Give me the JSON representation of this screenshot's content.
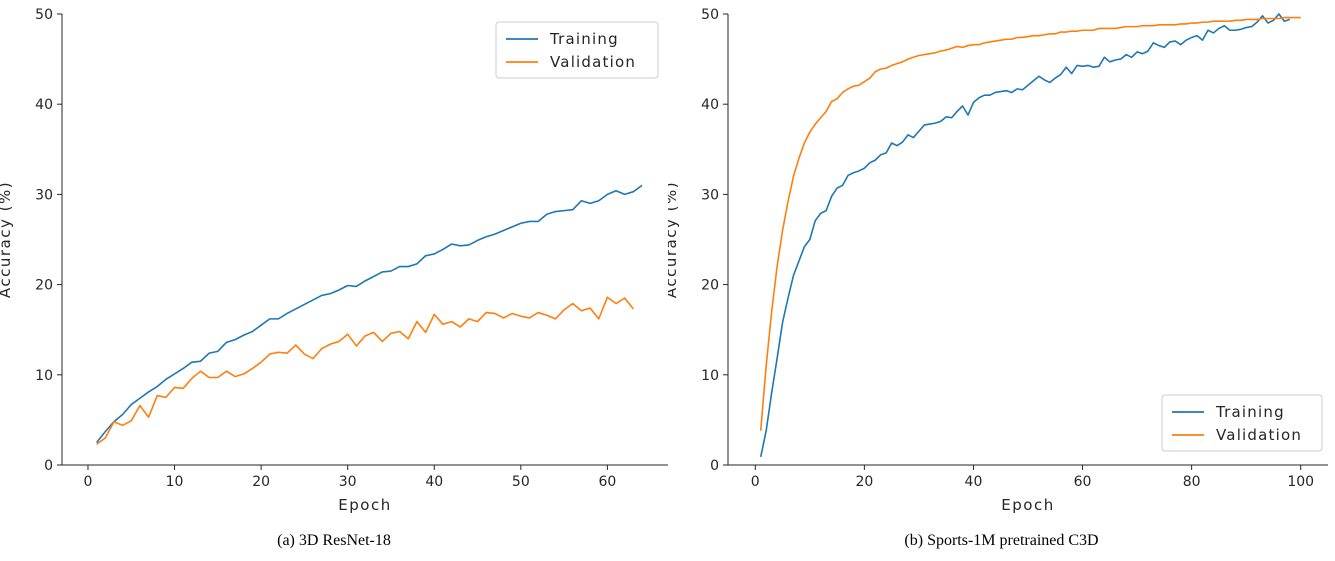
{
  "chart_data": [
    {
      "type": "line",
      "caption": "(a) 3D ResNet-18",
      "xlabel": "Epoch",
      "ylabel": "Accuracy (%)",
      "xlim": [
        -3,
        67
      ],
      "ylim": [
        0,
        50
      ],
      "xticks": [
        0,
        10,
        20,
        30,
        40,
        50,
        60
      ],
      "yticks": [
        0,
        10,
        20,
        30,
        40,
        50
      ],
      "grid": false,
      "legend_position": "top-right",
      "series": [
        {
          "name": "Training",
          "color": "#1f77b4",
          "x": [
            1,
            2,
            3,
            4,
            5,
            6,
            7,
            8,
            9,
            10,
            11,
            12,
            13,
            14,
            15,
            16,
            17,
            18,
            19,
            20,
            21,
            22,
            23,
            24,
            25,
            26,
            27,
            28,
            29,
            30,
            31,
            32,
            33,
            34,
            35,
            36,
            37,
            38,
            39,
            40,
            41,
            42,
            43,
            44,
            45,
            46,
            47,
            48,
            49,
            50,
            51,
            52,
            53,
            54,
            55,
            56,
            57,
            58,
            59,
            60,
            61,
            62,
            63,
            64
          ],
          "values": [
            2.5,
            3.7,
            4.8,
            5.6,
            6.7,
            7.4,
            8.1,
            8.7,
            9.5,
            10.1,
            10.7,
            11.4,
            11.5,
            12.4,
            12.6,
            13.6,
            13.9,
            14.4,
            14.8,
            15.5,
            16.2,
            16.2,
            16.8,
            17.3,
            17.8,
            18.3,
            18.8,
            19.0,
            19.4,
            19.9,
            19.8,
            20.4,
            20.9,
            21.4,
            21.5,
            22.0,
            22.0,
            22.3,
            23.2,
            23.4,
            23.9,
            24.5,
            24.3,
            24.4,
            24.9,
            25.3,
            25.6,
            26.0,
            26.4,
            26.8,
            27.0,
            27.0,
            27.8,
            28.1,
            28.2,
            28.3,
            29.3,
            29.0,
            29.3,
            30.0,
            30.4,
            30.0,
            30.3,
            31.0
          ]
        },
        {
          "name": "Validation",
          "color": "#ff7f0e",
          "x": [
            1,
            2,
            3,
            4,
            5,
            6,
            7,
            8,
            9,
            10,
            11,
            12,
            13,
            14,
            15,
            16,
            17,
            18,
            19,
            20,
            21,
            22,
            23,
            24,
            25,
            26,
            27,
            28,
            29,
            30,
            31,
            32,
            33,
            34,
            35,
            36,
            37,
            38,
            39,
            40,
            41,
            42,
            43,
            44,
            45,
            46,
            47,
            48,
            49,
            50,
            51,
            52,
            53,
            54,
            55,
            56,
            57,
            58,
            59,
            60,
            61,
            62,
            63,
            64
          ],
          "values": [
            2.3,
            3.0,
            4.8,
            4.4,
            4.9,
            6.6,
            5.3,
            7.7,
            7.5,
            8.6,
            8.5,
            9.6,
            10.4,
            9.7,
            9.7,
            10.4,
            9.8,
            10.1,
            10.7,
            11.4,
            12.3,
            12.5,
            12.4,
            13.3,
            12.3,
            11.8,
            12.9,
            13.4,
            13.7,
            14.5,
            13.2,
            14.3,
            14.7,
            13.7,
            14.6,
            14.8,
            14.0,
            15.9,
            14.7,
            16.7,
            15.6,
            15.9,
            15.3,
            16.2,
            15.9,
            16.9,
            16.8,
            16.3,
            16.8,
            16.5,
            16.3,
            16.9,
            16.6,
            16.2,
            17.2,
            17.9,
            17.1,
            17.4,
            16.2,
            18.6,
            17.9,
            18.5,
            17.3,
            null
          ]
        }
      ]
    },
    {
      "type": "line",
      "caption": "(b) Sports-1M pretrained C3D",
      "xlabel": "Epoch",
      "ylabel": "Accuracy (%)",
      "xlim": [
        -5,
        105
      ],
      "ylim": [
        0,
        50
      ],
      "xticks": [
        0,
        20,
        40,
        60,
        80,
        100
      ],
      "yticks": [
        0,
        10,
        20,
        30,
        40,
        50
      ],
      "grid": false,
      "legend_position": "bottom-right",
      "series": [
        {
          "name": "Training",
          "color": "#1f77b4",
          "x": [
            1,
            2,
            3,
            4,
            5,
            6,
            7,
            8,
            9,
            10,
            11,
            12,
            13,
            14,
            15,
            16,
            17,
            18,
            19,
            20,
            21,
            22,
            23,
            24,
            25,
            26,
            27,
            28,
            29,
            30,
            31,
            32,
            33,
            34,
            35,
            36,
            37,
            38,
            39,
            40,
            41,
            42,
            43,
            44,
            45,
            46,
            47,
            48,
            49,
            50,
            51,
            52,
            53,
            54,
            55,
            56,
            57,
            58,
            59,
            60,
            61,
            62,
            63,
            64,
            65,
            66,
            67,
            68,
            69,
            70,
            71,
            72,
            73,
            74,
            75,
            76,
            77,
            78,
            79,
            80,
            81,
            82,
            83,
            84,
            85,
            86,
            87,
            88,
            89,
            90,
            91,
            92,
            93,
            94,
            95,
            96,
            97,
            98,
            99,
            100
          ],
          "values": [
            0.9,
            3.8,
            8.0,
            11.8,
            15.8,
            18.5,
            21.0,
            22.6,
            24.2,
            25.0,
            27.1,
            27.9,
            28.2,
            29.8,
            30.7,
            31.0,
            32.1,
            32.4,
            32.6,
            32.9,
            33.5,
            33.8,
            34.4,
            34.6,
            35.7,
            35.4,
            35.8,
            36.6,
            36.3,
            37.0,
            37.7,
            37.8,
            37.9,
            38.1,
            38.6,
            38.5,
            39.2,
            39.8,
            38.8,
            40.2,
            40.7,
            41.0,
            41.0,
            41.3,
            41.4,
            41.5,
            41.3,
            41.7,
            41.6,
            42.1,
            42.6,
            43.1,
            42.7,
            42.4,
            42.9,
            43.3,
            44.1,
            43.4,
            44.3,
            44.2,
            44.3,
            44.1,
            44.2,
            45.2,
            44.7,
            44.9,
            45.0,
            45.5,
            45.2,
            45.8,
            45.6,
            45.9,
            46.8,
            46.5,
            46.3,
            46.9,
            47.0,
            46.6,
            47.1,
            47.4,
            47.6,
            47.1,
            48.2,
            47.9,
            48.4,
            48.7,
            48.2,
            48.2,
            48.3,
            48.5,
            48.6,
            49.1,
            49.8,
            49.0,
            49.3,
            50.0,
            49.2,
            49.4,
            null,
            null
          ]
        },
        {
          "name": "Validation",
          "color": "#ff7f0e",
          "x": [
            1,
            2,
            3,
            4,
            5,
            6,
            7,
            8,
            9,
            10,
            11,
            12,
            13,
            14,
            15,
            16,
            17,
            18,
            19,
            20,
            21,
            22,
            23,
            24,
            25,
            26,
            27,
            28,
            29,
            30,
            31,
            32,
            33,
            34,
            35,
            36,
            37,
            38,
            39,
            40,
            41,
            42,
            43,
            44,
            45,
            46,
            47,
            48,
            49,
            50,
            51,
            52,
            53,
            54,
            55,
            56,
            57,
            58,
            59,
            60,
            61,
            62,
            63,
            64,
            65,
            66,
            67,
            68,
            69,
            70,
            71,
            72,
            73,
            74,
            75,
            76,
            77,
            78,
            79,
            80,
            81,
            82,
            83,
            84,
            85,
            86,
            87,
            88,
            89,
            90,
            91,
            92,
            93,
            94,
            95,
            96,
            97,
            98,
            99,
            100
          ],
          "values": [
            3.8,
            11.0,
            17.0,
            22.0,
            26.0,
            29.2,
            32.0,
            34.0,
            35.7,
            36.9,
            37.8,
            38.5,
            39.2,
            40.3,
            40.6,
            41.3,
            41.7,
            42.0,
            42.1,
            42.5,
            42.9,
            43.6,
            43.9,
            44.0,
            44.3,
            44.5,
            44.7,
            45.0,
            45.2,
            45.4,
            45.5,
            45.6,
            45.7,
            45.9,
            46.0,
            46.2,
            46.4,
            46.3,
            46.5,
            46.6,
            46.6,
            46.8,
            46.9,
            47.0,
            47.1,
            47.2,
            47.2,
            47.4,
            47.4,
            47.5,
            47.6,
            47.6,
            47.7,
            47.8,
            47.8,
            48.0,
            48.0,
            48.1,
            48.1,
            48.2,
            48.2,
            48.2,
            48.4,
            48.4,
            48.4,
            48.4,
            48.5,
            48.6,
            48.6,
            48.6,
            48.7,
            48.7,
            48.7,
            48.8,
            48.8,
            48.8,
            48.8,
            48.9,
            48.9,
            49.0,
            49.0,
            49.1,
            49.1,
            49.2,
            49.2,
            49.2,
            49.2,
            49.3,
            49.3,
            49.4,
            49.4,
            49.4,
            49.5,
            49.5,
            49.5,
            49.5,
            49.6,
            49.6,
            49.6,
            49.6
          ]
        }
      ]
    }
  ]
}
